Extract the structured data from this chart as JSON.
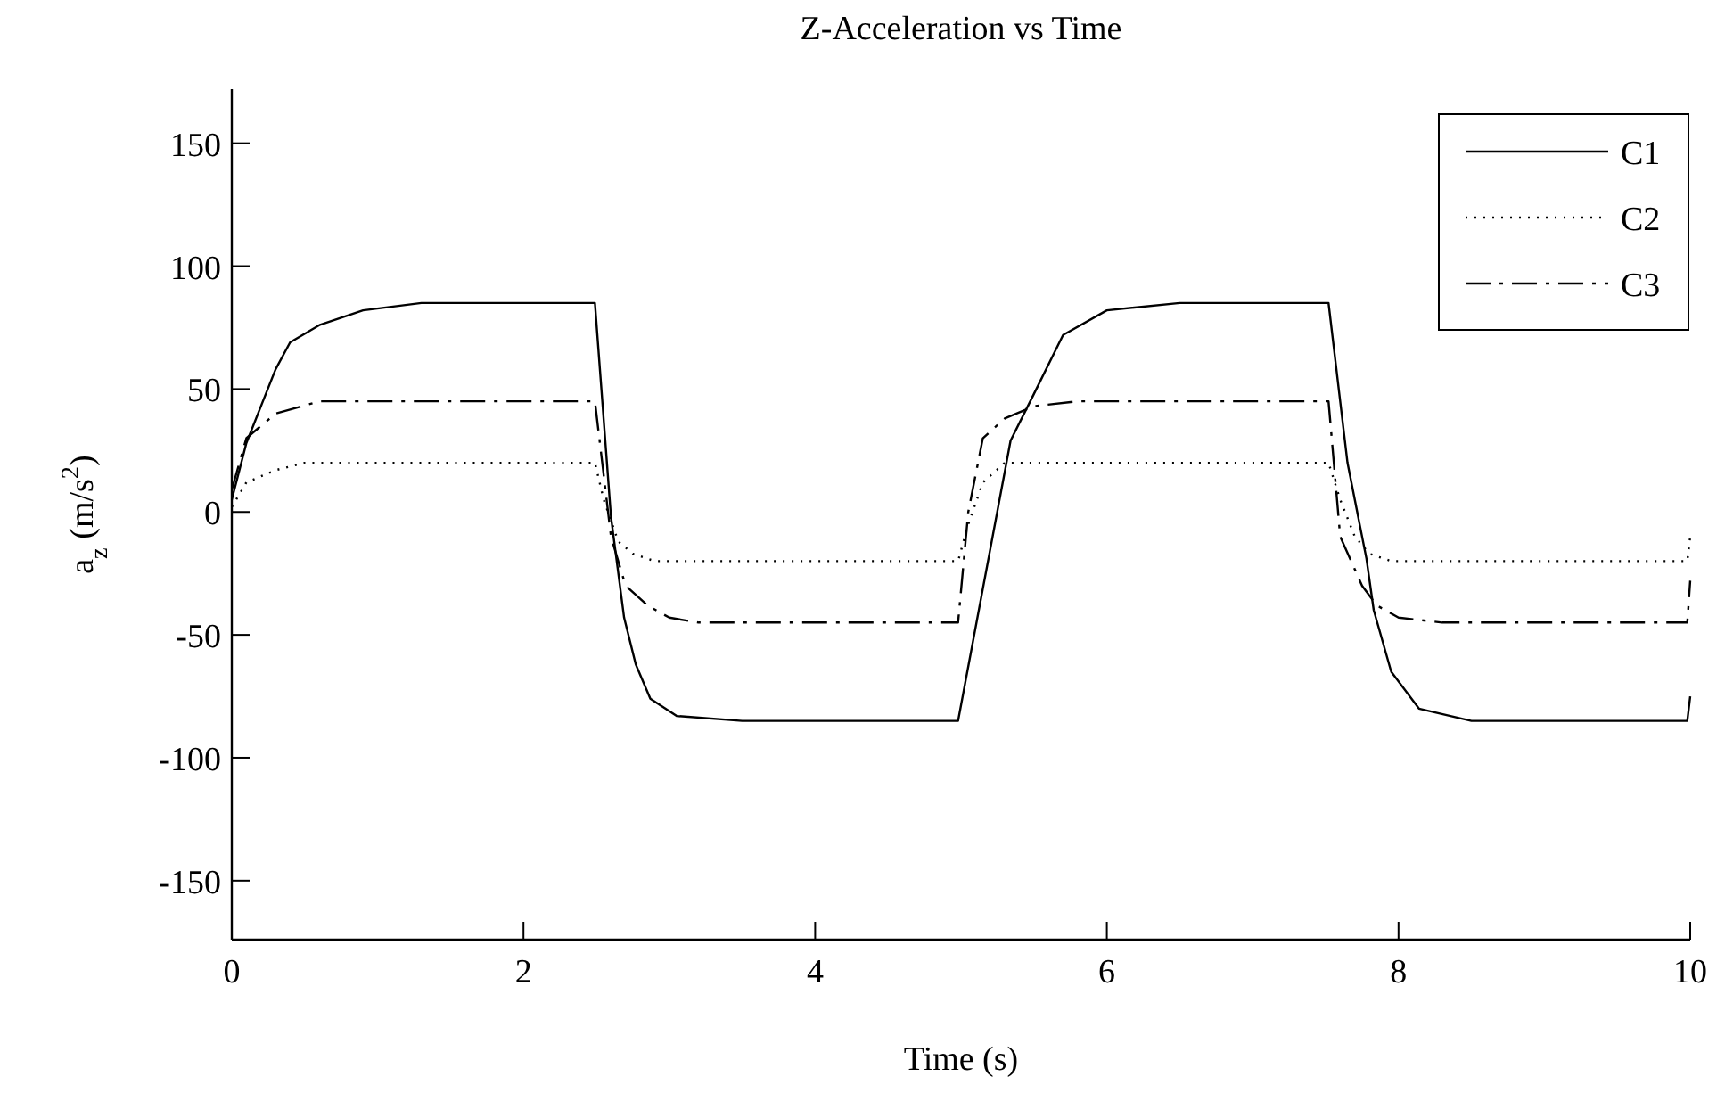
{
  "chart_data": {
    "type": "line",
    "title": "Z-Acceleration vs Time",
    "xlabel": "Time (s)",
    "ylabel": "a$_{z}$ (m/s$^{2}$)",
    "xlim": [
      0,
      10
    ],
    "ylim": [
      -174,
      172
    ],
    "xticks": [
      0,
      2,
      4,
      6,
      8,
      10
    ],
    "yticks": [
      -150,
      -100,
      -50,
      0,
      50,
      100,
      150
    ],
    "grid": false,
    "legend": "top right",
    "marker": "none",
    "series": [
      {
        "name": "C1",
        "color": "#000000",
        "line_style": "solid",
        "x": [
          0,
          0.1,
          0.2,
          0.3,
          0.4,
          0.6,
          0.9,
          1.3,
          2.49,
          2.6,
          2.69,
          2.77,
          2.87,
          3.05,
          3.5,
          4.98,
          5.34,
          5.5,
          5.7,
          6.0,
          6.5,
          7.52,
          7.65,
          7.78,
          7.83,
          7.95,
          8.14,
          8.5,
          9.98,
          10
        ],
        "values": [
          5,
          28,
          43,
          58,
          69,
          76,
          82,
          85,
          85,
          -2,
          -43,
          -62,
          -76,
          -83,
          -85,
          -85,
          29,
          48,
          72,
          82,
          85,
          85,
          20,
          -19,
          -40,
          -65,
          -80,
          -85,
          -85,
          -75
        ]
      },
      {
        "name": "C2",
        "color": "#000000",
        "line_style": "dotted",
        "x": [
          0,
          0.1,
          0.3,
          0.5,
          2.49,
          2.55,
          2.65,
          2.75,
          2.9,
          4.98,
          5.05,
          5.15,
          5.3,
          7.52,
          7.6,
          7.7,
          7.8,
          7.95,
          9.98,
          10
        ],
        "values": [
          2,
          12,
          17,
          20,
          20,
          5,
          -12,
          -17,
          -20,
          -20,
          -5,
          12,
          20,
          20,
          5,
          -10,
          -17,
          -20,
          -20,
          -10
        ]
      },
      {
        "name": "C3",
        "color": "#000000",
        "line_style": "dashdot",
        "x": [
          0,
          0.1,
          0.3,
          0.6,
          2.49,
          2.6,
          2.7,
          2.85,
          3.0,
          3.2,
          4.98,
          5.05,
          5.15,
          5.3,
          5.5,
          5.8,
          7.52,
          7.6,
          7.75,
          7.85,
          8.0,
          8.3,
          9.98,
          10
        ],
        "values": [
          9,
          30,
          40,
          45,
          45,
          -10,
          -30,
          -38,
          -43,
          -45,
          -45,
          0,
          30,
          38,
          43,
          45,
          45,
          -10,
          -30,
          -38,
          -43,
          -45,
          -45,
          -28
        ]
      }
    ]
  }
}
